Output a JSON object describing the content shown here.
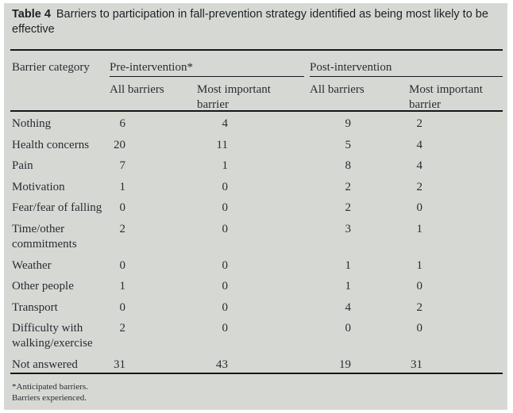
{
  "title": {
    "label": "Table 4",
    "text": "Barriers to participation in fall-prevention strategy identified as being most likely to be effective"
  },
  "table": {
    "row_header": "Barrier category",
    "groups": [
      {
        "label": "Pre-intervention*",
        "columns": [
          "All barriers",
          "Most important\nbarrier"
        ]
      },
      {
        "label": "Post-intervention",
        "columns": [
          "All barriers",
          "Most important\nbarrier"
        ]
      }
    ],
    "rows": [
      {
        "label": "Nothing",
        "values": [
          "6",
          "4",
          "9",
          "2"
        ]
      },
      {
        "label": "Health concerns",
        "values": [
          "20",
          "11",
          "5",
          "4"
        ]
      },
      {
        "label": "Pain",
        "values": [
          "7",
          "1",
          "8",
          "4"
        ]
      },
      {
        "label": "Motivation",
        "values": [
          "1",
          "0",
          "2",
          "2"
        ]
      },
      {
        "label": "Fear/fear of falling",
        "values": [
          "0",
          "0",
          "2",
          "0"
        ]
      },
      {
        "label": "Time/other\ncommitments",
        "values": [
          "2",
          "0",
          "3",
          "1"
        ]
      },
      {
        "label": "Weather",
        "values": [
          "0",
          "0",
          "1",
          "1"
        ]
      },
      {
        "label": "Other people",
        "values": [
          "1",
          "0",
          "1",
          "0"
        ]
      },
      {
        "label": "Transport",
        "values": [
          "0",
          "0",
          "4",
          "2"
        ]
      },
      {
        "label": "Difficulty with\nwalking/exercise",
        "values": [
          "2",
          "0",
          "0",
          "0"
        ]
      },
      {
        "label": "Not answered",
        "values": [
          "31",
          "43",
          "19",
          "31"
        ]
      }
    ],
    "footnotes": "*Anticipated barriers.\nBarriers experienced."
  },
  "colors": {
    "panel_bg": "#d6d9d3",
    "rule": "#14171b",
    "text": "#272c34"
  }
}
